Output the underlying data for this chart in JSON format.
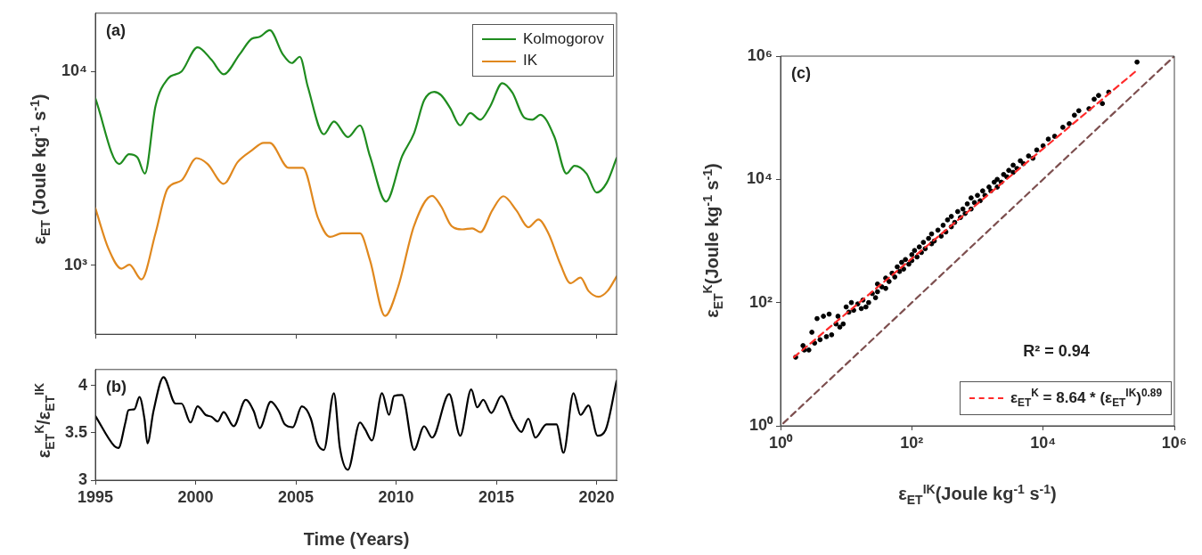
{
  "chart_data": [
    {
      "type": "line",
      "ylabel": "ε$_{ET}$ (Joule kg$^{-1}$ s$^{-1}$)",
      "annotations": [
        "(a)"
      ],
      "log": "y",
      "legend": "top right",
      "tick_labels": "y",
      "xlim": [
        1995,
        2021
      ],
      "xticks": [
        {
          "value": 1995,
          "label": null
        },
        {
          "value": 2000,
          "label": null
        },
        {
          "value": 2005,
          "label": null
        },
        {
          "value": 2010,
          "label": null
        },
        {
          "value": 2015,
          "label": null
        },
        {
          "value": 2020,
          "label": null
        }
      ],
      "ylim": [
        440,
        20000
      ],
      "yticks": [
        {
          "value": 1000,
          "label": "10³"
        },
        {
          "value": 10000,
          "label": "10⁴"
        }
      ],
      "series": [
        {
          "name": "Kolmogorov",
          "color": "#1f8c1f",
          "x": [
            1995,
            1996.19,
            1996.68,
            1997.1,
            1997.47,
            1998,
            1998.6,
            1999.3,
            2000.1,
            2000.8,
            2001.4,
            2002.2,
            2002.8,
            2003.2,
            2003.7,
            2004.35,
            2004.8,
            2005.2,
            2005.6,
            2006.4,
            2006.9,
            2007.6,
            2008.2,
            2008.7,
            2009.5,
            2010.3,
            2010.9,
            2011.4,
            2011.9,
            2012.25,
            2012.7,
            2013.2,
            2013.7,
            2014.2,
            2014.7,
            2015.3,
            2015.8,
            2016.4,
            2016.8,
            2017.2,
            2017.9,
            2018.5,
            2018.9,
            2019.5,
            2020,
            2020.5,
            2021
          ],
          "values": [
            7260,
            3330,
            3740,
            3600,
            2970,
            6620,
            9130,
            10000,
            13340,
            11470,
            9680,
            12280,
            14750,
            15100,
            16330,
            12280,
            11060,
            11910,
            8330,
            4740,
            5520,
            4590,
            5270,
            3650,
            2130,
            3650,
            4810,
            7100,
            7850,
            7540,
            6470,
            5270,
            6100,
            5640,
            6620,
            8710,
            7780,
            5770,
            5640,
            5980,
            4590,
            2970,
            3260,
            2970,
            2370,
            2650,
            3570
          ]
        },
        {
          "name": "IK",
          "color": "#e0881e",
          "x": [
            1995,
            1995.65,
            1996.3,
            1996.7,
            1997.3,
            1998,
            1998.6,
            1999.3,
            2000.05,
            2000.6,
            2001.4,
            2002.1,
            2002.8,
            2003.4,
            2003.7,
            2004.65,
            2005.35,
            2006.1,
            2006.7,
            2007.3,
            2008.2,
            2008.7,
            2009.45,
            2010.1,
            2010.9,
            2011.8,
            2012.25,
            2012.75,
            2013.3,
            2013.8,
            2014.2,
            2014.8,
            2015.35,
            2016,
            2016.6,
            2017.1,
            2017.6,
            2018.2,
            2018.7,
            2019.2,
            2019.6,
            2020.1,
            2020.55,
            2021
          ],
          "values": [
            1970,
            1220,
            960,
            1005,
            845,
            1460,
            2480,
            2740,
            3570,
            3330,
            2630,
            3410,
            3910,
            4280,
            4280,
            3180,
            3180,
            1760,
            1400,
            1460,
            1460,
            1060,
            547,
            771,
            1600,
            2280,
            2010,
            1600,
            1530,
            1550,
            1480,
            1920,
            2270,
            1920,
            1570,
            1720,
            1460,
            1010,
            807,
            863,
            736,
            687,
            736,
            875
          ]
        }
      ]
    },
    {
      "type": "line",
      "ylabel": "ε$_{ET}$$^{K}$/ε$_{ET}$$^{IK}$",
      "xlabel": "Time (Years)",
      "annotations": [
        "(b)"
      ],
      "xlim": [
        1995,
        2021
      ],
      "xticks": [
        1995,
        2000,
        2005,
        2010,
        2015,
        2020
      ],
      "ylim": [
        3,
        4.17
      ],
      "yticks": [
        3,
        3.5,
        4
      ],
      "series": [
        {
          "color": "#000000",
          "x": [
            1995,
            1995.95,
            1996.15,
            1996.5,
            1996.65,
            1996.95,
            1997.2,
            1997.45,
            1997.6,
            1997.9,
            1998.4,
            1999,
            1999.3,
            1999.75,
            2000.1,
            2000.5,
            2000.8,
            2001.1,
            2001.4,
            2001.9,
            2002.5,
            2002.9,
            2003.2,
            2003.75,
            2004.15,
            2004.45,
            2004.85,
            2005.3,
            2005.75,
            2006.05,
            2006.4,
            2006.9,
            2007.2,
            2007.6,
            2008.2,
            2008.45,
            2008.8,
            2009.3,
            2009.65,
            2009.9,
            2010.3,
            2010.9,
            2011.4,
            2011.8,
            2012.65,
            2013.2,
            2013.75,
            2014.05,
            2014.35,
            2014.75,
            2015.25,
            2015.85,
            2016.25,
            2016.6,
            2016.95,
            2017.5,
            2018,
            2018.35,
            2018.85,
            2019.2,
            2019.6,
            2020.05,
            2020.45,
            2021
          ],
          "values": [
            3.68,
            3.36,
            3.34,
            3.61,
            3.74,
            3.75,
            3.88,
            3.65,
            3.39,
            3.73,
            4.09,
            3.81,
            3.81,
            3.61,
            3.78,
            3.69,
            3.67,
            3.62,
            3.72,
            3.57,
            3.85,
            3.73,
            3.55,
            3.83,
            3.73,
            3.59,
            3.56,
            3.78,
            3.65,
            3.4,
            3.32,
            3.92,
            3.34,
            3.11,
            3.61,
            3.54,
            3.42,
            3.92,
            3.69,
            3.89,
            3.9,
            3.32,
            3.57,
            3.45,
            3.91,
            3.47,
            3.96,
            3.77,
            3.85,
            3.71,
            3.89,
            3.63,
            3.51,
            3.65,
            3.45,
            3.59,
            3.59,
            3.29,
            3.92,
            3.69,
            3.79,
            3.47,
            3.53,
            4.05
          ]
        }
      ]
    },
    {
      "type": "scatter",
      "xlabel": "ε$_{ET}$$^{IK}$(Joule kg$^{-1}$ s$^{-1}$)",
      "ylabel": "ε$_{ET}$$^{K}$(Joule kg$^{-1}$ s$^{-1}$)",
      "annotations": [
        "(c)",
        "R² = 0.94"
      ],
      "log": "xy",
      "legend": "bottom right",
      "xlim": [
        1,
        1000000
      ],
      "xticks": [
        {
          "value": 1,
          "label": "10⁰"
        },
        {
          "value": 100,
          "label": "10²"
        },
        {
          "value": 10000,
          "label": "10⁴"
        },
        {
          "value": 1000000,
          "label": "10⁶"
        }
      ],
      "ylim": [
        1,
        1000000
      ],
      "yticks": [
        {
          "value": 1,
          "label": "10⁰"
        },
        {
          "value": 100,
          "label": "10²"
        },
        {
          "value": 10000,
          "label": "10⁴"
        },
        {
          "value": 1000000,
          "label": "10⁶"
        }
      ],
      "series": [
        {
          "type": "scatter",
          "color": "#000000",
          "marker": "circle",
          "x": [
            1.7,
            2.2,
            2.3,
            2.7,
            3,
            3.3,
            3.6,
            4,
            4.5,
            5,
            5.5,
            6,
            7,
            7.5,
            8,
            9,
            10,
            11,
            12,
            13,
            15,
            17,
            18,
            20,
            22,
            25,
            28,
            30,
            30,
            35,
            40,
            40,
            45,
            50,
            55,
            60,
            65,
            70,
            75,
            80,
            90,
            100,
            100,
            110,
            120,
            130,
            140,
            150,
            160,
            180,
            200,
            200,
            220,
            250,
            280,
            300,
            330,
            350,
            400,
            400,
            450,
            500,
            550,
            600,
            650,
            700,
            800,
            800,
            900,
            1000,
            1100,
            1200,
            1300,
            1500,
            1600,
            1800,
            2000,
            2000,
            2300,
            2500,
            2800,
            3000,
            3500,
            3500,
            4000,
            4500,
            5000,
            6000,
            7000,
            8000,
            10000,
            12000,
            15000,
            20000,
            25000,
            30000,
            35000,
            50000,
            60000,
            70000,
            80000,
            100000,
            270000
          ],
          "values": [
            13,
            20,
            17,
            17,
            33,
            22,
            55,
            25,
            60,
            28,
            65,
            30,
            45,
            60,
            40,
            45,
            85,
            70,
            100,
            75,
            95,
            80,
            110,
            85,
            100,
            140,
            120,
            200,
            150,
            180,
            250,
            170,
            220,
            300,
            260,
            380,
            320,
            450,
            350,
            500,
            420,
            600,
            480,
            700,
            550,
            800,
            650,
            950,
            750,
            1100,
            900,
            1300,
            1000,
            1500,
            1200,
            1800,
            1400,
            2200,
            1700,
            2500,
            2000,
            3000,
            2400,
            3300,
            2800,
            4000,
            3300,
            5000,
            4200,
            5500,
            4500,
            6500,
            5500,
            7500,
            6500,
            9000,
            7500,
            10000,
            9000,
            12000,
            11000,
            14000,
            13000,
            17000,
            15000,
            20000,
            18000,
            24000,
            22000,
            30000,
            35000,
            45000,
            50000,
            70000,
            80000,
            110000,
            130000,
            140000,
            200000,
            230000,
            170000,
            260000,
            800000
          ]
        },
        {
          "type": "line",
          "name": "ε$_{ET}$$^{K}$ = 8.64 * (ε$_{ET}$$^{IK}$)$^{0.89}$",
          "color": "#ff2a2a",
          "line_style": "dashed",
          "marker": "none",
          "x": [
            1.6,
            280000
          ],
          "values": [
            13,
            610000
          ]
        },
        {
          "type": "line",
          "color": "#7d4f4f",
          "line_style": "dashed",
          "marker": "none",
          "x": [
            1.1,
            1000000
          ],
          "values": [
            1.1,
            1000000
          ]
        }
      ]
    }
  ]
}
